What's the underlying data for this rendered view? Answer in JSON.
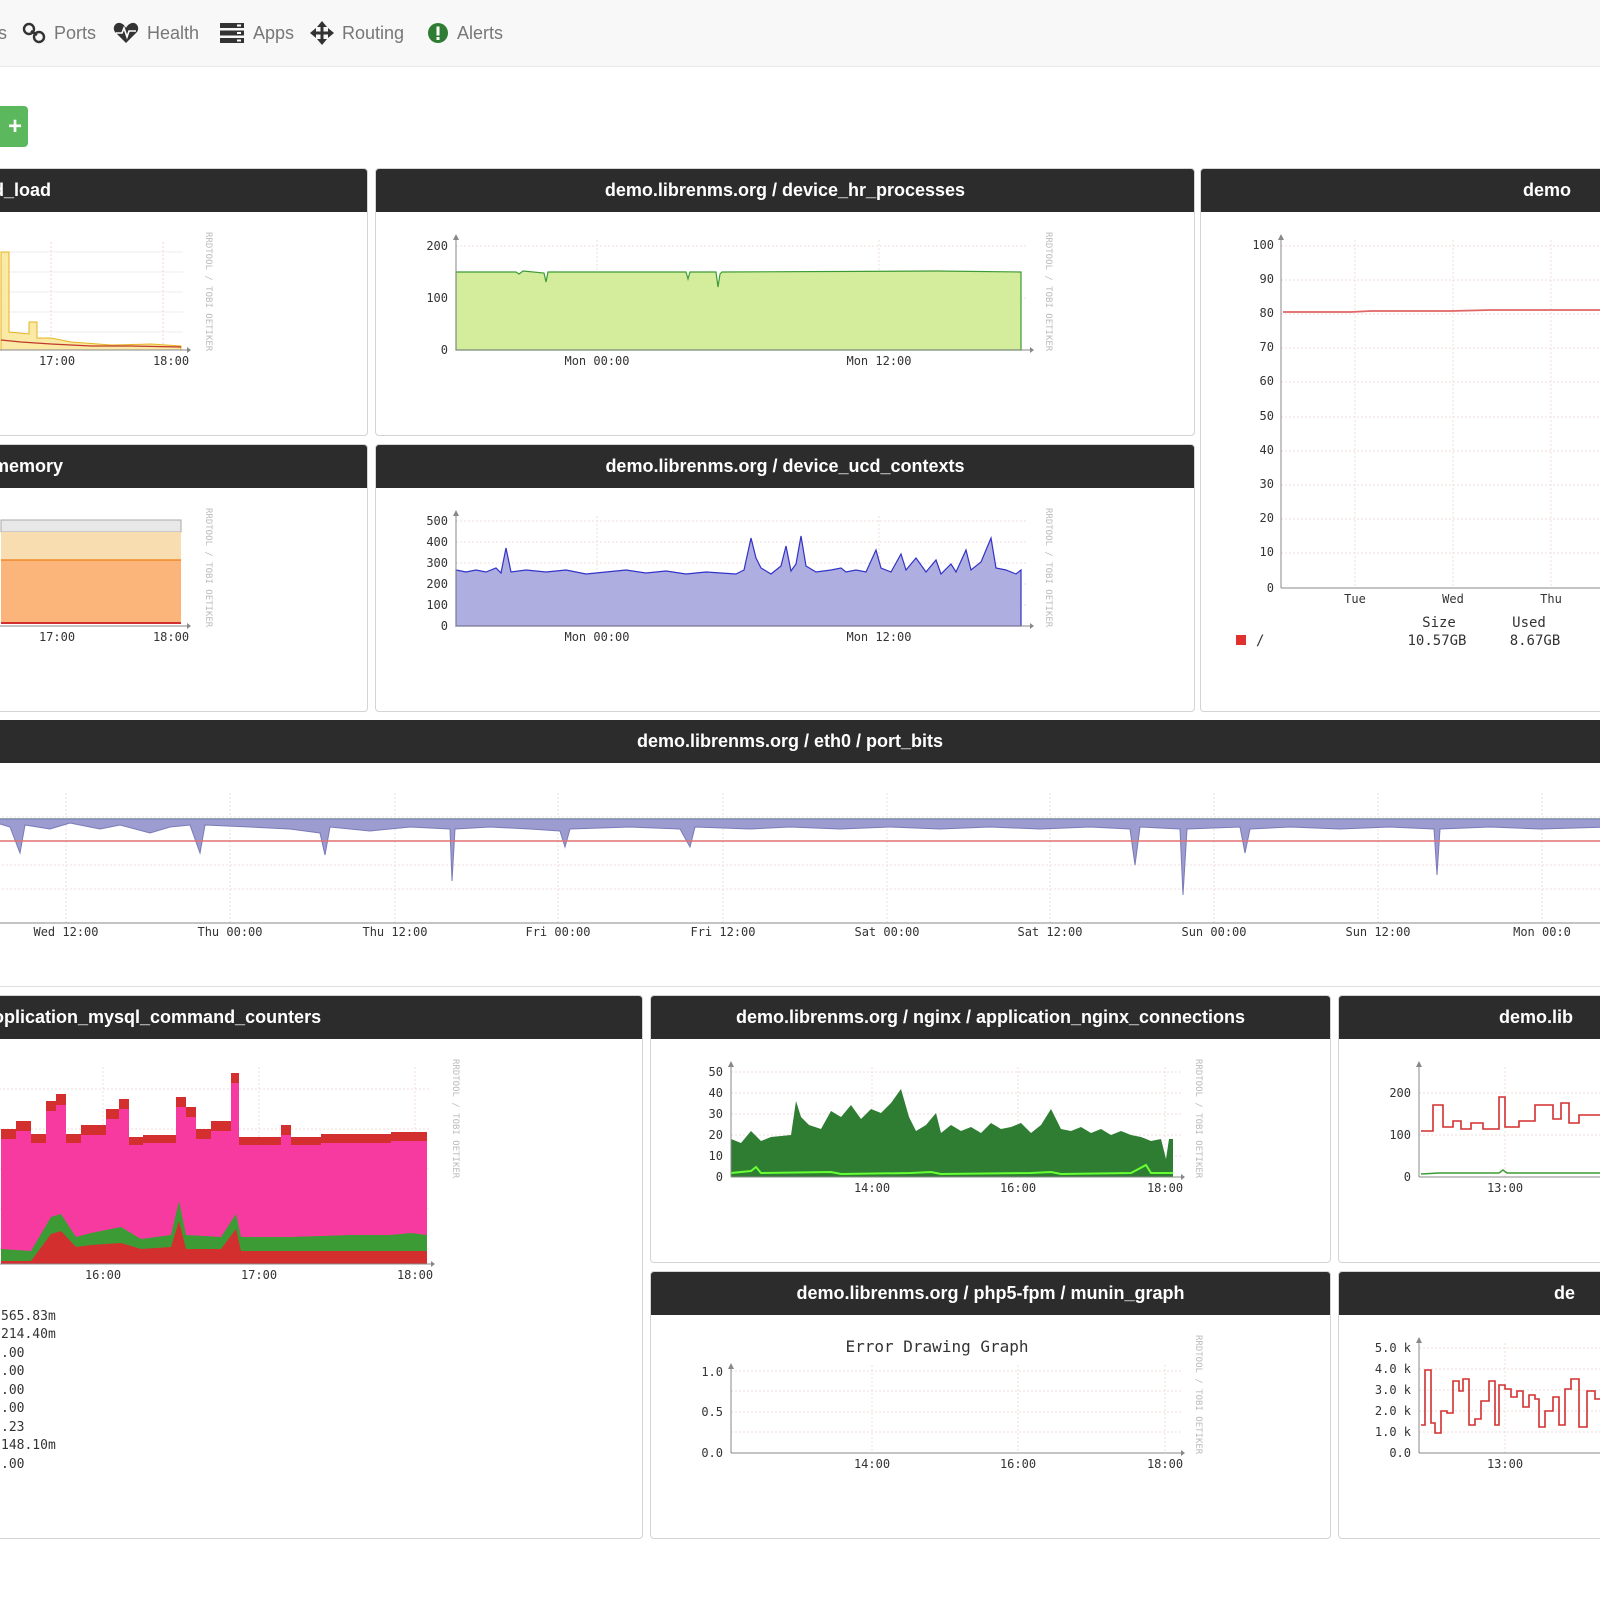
{
  "navbar": {
    "items": [
      {
        "label": "s"
      },
      {
        "label": "Ports"
      },
      {
        "label": "Health"
      },
      {
        "label": "Apps"
      },
      {
        "label": "Routing"
      },
      {
        "label": "Alerts"
      }
    ]
  },
  "add_button": {
    "label": "+"
  },
  "panels": {
    "load": {
      "title": "d_load",
      "x_ticks": [
        "17:00",
        "18:00"
      ],
      "watermark": "RRDTOOL / TOBI OETIKER"
    },
    "processes": {
      "title": "demo.librenms.org / device_hr_processes",
      "y_ticks": [
        "200",
        "100",
        "0"
      ],
      "x_ticks": [
        "Mon 00:00",
        "Mon 12:00"
      ],
      "watermark": "RRDTOOL / TOBI OETIKER"
    },
    "storage": {
      "title": "demo",
      "y_ticks": [
        "100",
        "90",
        "80",
        "70",
        "60",
        "50",
        "40",
        "30",
        "20",
        "10",
        "0"
      ],
      "x_ticks": [
        "Tue",
        "Wed",
        "Thu"
      ],
      "legend_label": "/",
      "size_header": "Size",
      "used_header": "Used",
      "size_value": "10.57GB",
      "used_value": "8.67GB"
    },
    "memory": {
      "title": "memory",
      "x_ticks": [
        "17:00",
        "18:00"
      ],
      "watermark": "RRDTOOL / TOBI OETIKER"
    },
    "contexts": {
      "title": "demo.librenms.org / device_ucd_contexts",
      "y_ticks": [
        "500",
        "400",
        "300",
        "200",
        "100",
        "0"
      ],
      "x_ticks": [
        "Mon 00:00",
        "Mon 12:00"
      ],
      "watermark": "RRDTOOL / TOBI OETIKER"
    },
    "port_bits": {
      "title": "demo.librenms.org / eth0 / port_bits",
      "x_ticks": [
        "Wed 12:00",
        "Thu 00:00",
        "Thu 12:00",
        "Fri 00:00",
        "Fri 12:00",
        "Sat 00:00",
        "Sat 12:00",
        "Sun 00:00",
        "Sun 12:00",
        "Mon 00:0"
      ]
    },
    "mysql": {
      "title": "oplication_mysql_command_counters",
      "x_ticks": [
        "16:00",
        "17:00",
        "18:00"
      ],
      "watermark": "RRDTOOL / TOBI OETIKER",
      "legend_values": [
        "565.83m",
        " 214.40m",
        ".00",
        ".00",
        ".00",
        ".00",
        ".23",
        " 148.10m",
        ".00"
      ]
    },
    "nginx": {
      "title": "demo.librenms.org / nginx / application_nginx_connections",
      "y_ticks": [
        "50",
        "40",
        "30",
        "20",
        "10",
        "0"
      ],
      "x_ticks": [
        "14:00",
        "16:00",
        "18:00"
      ],
      "watermark": "RRDTOOL / TOBI OETIKER"
    },
    "demo_lib": {
      "title": "demo.lib",
      "y_ticks": [
        "200",
        "100",
        "0"
      ],
      "x_ticks": [
        "13:00"
      ]
    },
    "php": {
      "title": "demo.librenms.org / php5-fpm / munin_graph",
      "error_text": "Error Drawing Graph",
      "y_ticks": [
        "1.0",
        "0.5",
        "0.0"
      ],
      "x_ticks": [
        "14:00",
        "16:00",
        "18:00"
      ],
      "watermark": "RRDTOOL / TOBI OETIKER"
    },
    "de": {
      "title": "de",
      "y_ticks": [
        "5.0 k",
        "4.0 k",
        "3.0 k",
        "2.0 k",
        "1.0 k",
        "0.0"
      ],
      "x_ticks": [
        "13:00"
      ]
    }
  },
  "colors": {
    "header_bg": "#2c2c2c",
    "add_green": "#5cb85c",
    "nav_text": "#777777"
  }
}
